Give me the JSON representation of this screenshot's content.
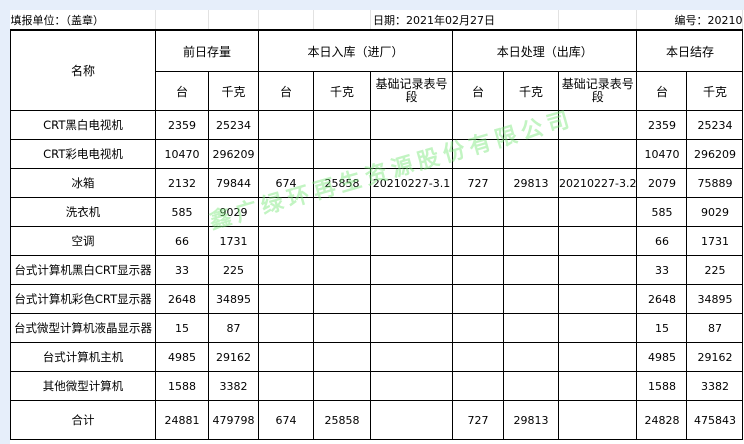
{
  "header": {
    "unit": "填报单位：（盖章）",
    "date": "日期：2021年02月27日",
    "number": "编号：20210"
  },
  "columns": {
    "name": "名称",
    "prev": "前日存量",
    "in": "本日入库（进厂）",
    "out": "本日处理（出库）",
    "end": "本日结存",
    "units": "台",
    "kg": "千克",
    "record": "基础记录表号段"
  },
  "rows": [
    {
      "name": "CRT黑白电视机",
      "pu": "2359",
      "pk": "25234",
      "iu": "",
      "ik": "",
      "ir": "",
      "ou": "",
      "ok": "",
      "or": "",
      "eu": "2359",
      "ek": "25234"
    },
    {
      "name": "CRT彩电电视机",
      "pu": "10470",
      "pk": "296209",
      "iu": "",
      "ik": "",
      "ir": "",
      "ou": "",
      "ok": "",
      "or": "",
      "eu": "10470",
      "ek": "296209"
    },
    {
      "name": "冰箱",
      "pu": "2132",
      "pk": "79844",
      "iu": "674",
      "ik": "25858",
      "ir": "20210227-3.1",
      "ou": "727",
      "ok": "29813",
      "or": "20210227-3.2",
      "eu": "2079",
      "ek": "75889"
    },
    {
      "name": "洗衣机",
      "pu": "585",
      "pk": "9029",
      "iu": "",
      "ik": "",
      "ir": "",
      "ou": "",
      "ok": "",
      "or": "",
      "eu": "585",
      "ek": "9029"
    },
    {
      "name": "空调",
      "pu": "66",
      "pk": "1731",
      "iu": "",
      "ik": "",
      "ir": "",
      "ou": "",
      "ok": "",
      "or": "",
      "eu": "66",
      "ek": "1731"
    },
    {
      "name": "台式计算机黑白CRT显示器",
      "pu": "33",
      "pk": "225",
      "iu": "",
      "ik": "",
      "ir": "",
      "ou": "",
      "ok": "",
      "or": "",
      "eu": "33",
      "ek": "225"
    },
    {
      "name": "台式计算机彩色CRT显示器",
      "pu": "2648",
      "pk": "34895",
      "iu": "",
      "ik": "",
      "ir": "",
      "ou": "",
      "ok": "",
      "or": "",
      "eu": "2648",
      "ek": "34895"
    },
    {
      "name": "台式微型计算机液晶显示器",
      "pu": "15",
      "pk": "87",
      "iu": "",
      "ik": "",
      "ir": "",
      "ou": "",
      "ok": "",
      "or": "",
      "eu": "15",
      "ek": "87"
    },
    {
      "name": "台式计算机主机",
      "pu": "4985",
      "pk": "29162",
      "iu": "",
      "ik": "",
      "ir": "",
      "ou": "",
      "ok": "",
      "or": "",
      "eu": "4985",
      "ek": "29162"
    },
    {
      "name": "其他微型计算机",
      "pu": "1588",
      "pk": "3382",
      "iu": "",
      "ik": "",
      "ir": "",
      "ou": "",
      "ok": "",
      "or": "",
      "eu": "1588",
      "ek": "3382"
    },
    {
      "name": "合计",
      "pu": "24881",
      "pk": "479798",
      "iu": "674",
      "ik": "25858",
      "ir": "",
      "ou": "727",
      "ok": "29813",
      "or": "",
      "eu": "24828",
      "ek": "475843"
    }
  ],
  "watermark": "鑫广绿环再生资源股份有限公司"
}
